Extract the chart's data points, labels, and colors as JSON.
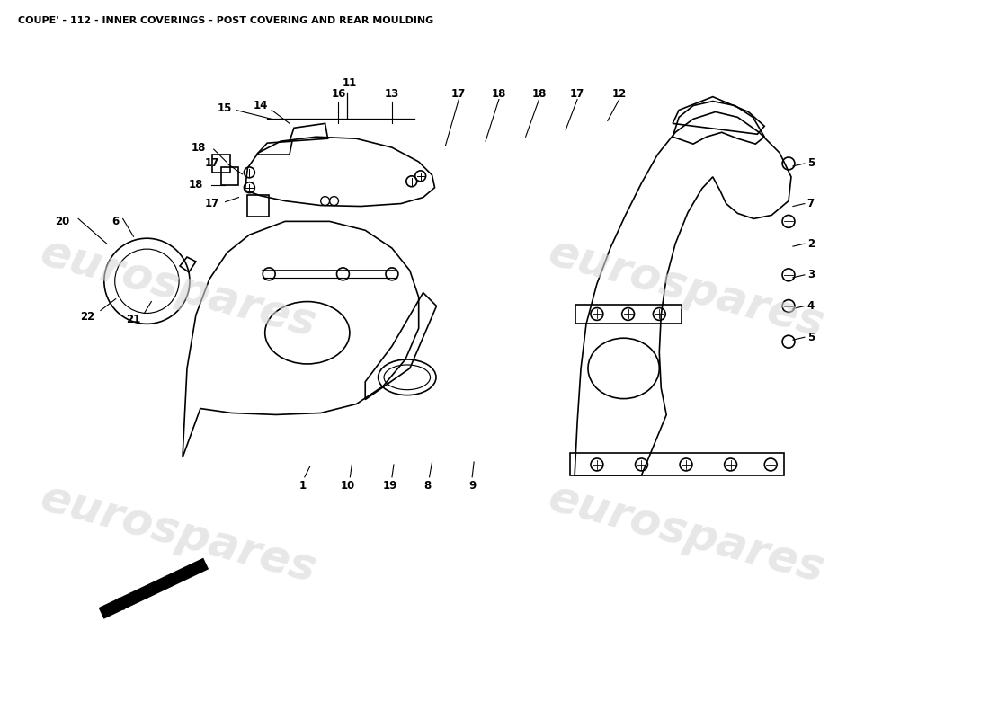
{
  "title": "COUPE' - 112 - INNER COVERINGS - POST COVERING AND REAR MOULDING",
  "title_fontsize": 8,
  "background_color": "#ffffff",
  "watermark_text": "eurospares",
  "watermark_color": "#d8d8d8",
  "watermark_fontsize": 36,
  "line_width": 1.2,
  "label_fontsize": 8.5
}
